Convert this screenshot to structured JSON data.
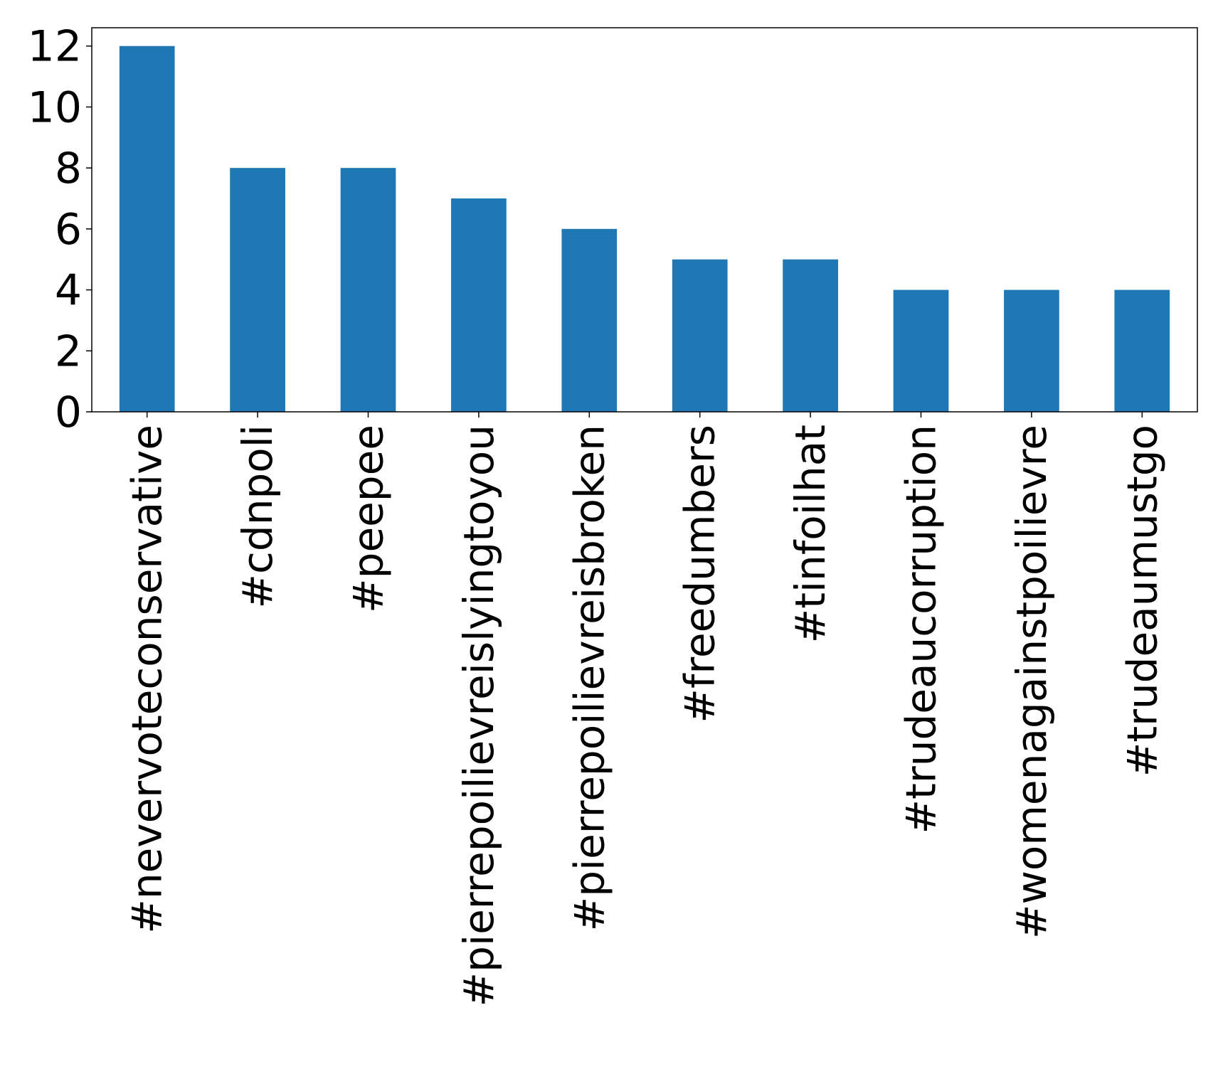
{
  "chart_data": {
    "type": "bar",
    "title": "",
    "xlabel": "",
    "ylabel": "",
    "categories": [
      "#nevervoteconservative",
      "#cdnpoli",
      "#peepee",
      "#pierrepoilievreislyingtoyou",
      "#pierrepoilievreisbroken",
      "#freedumbers",
      "#tinfoilhat",
      "#trudeaucorruption",
      "#womenagainstpoilievre",
      "#trudeaumustgo"
    ],
    "values": [
      12,
      8,
      8,
      7,
      6,
      5,
      5,
      4,
      4,
      4
    ],
    "ylim": [
      0,
      12.6
    ],
    "yticks": [
      0,
      2,
      4,
      6,
      8,
      10,
      12
    ],
    "grid": false,
    "legend": "none",
    "colors": {
      "bar": "#1f77b4",
      "axis": "#000000",
      "background": "#ffffff"
    }
  }
}
